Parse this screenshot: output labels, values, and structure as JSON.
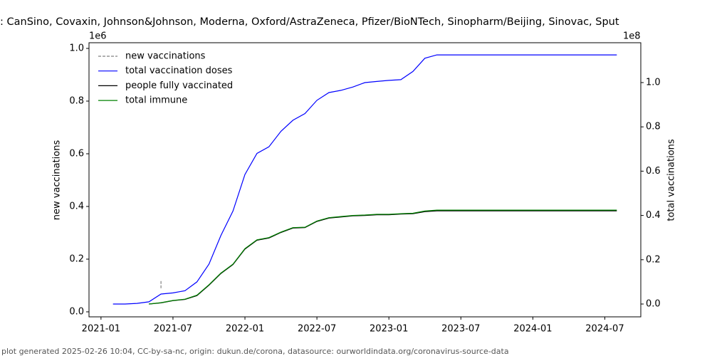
{
  "chart_data": {
    "type": "line",
    "title": ": CanSino, Covaxin, Johnson&Johnson, Moderna, Oxford/AstraZeneca, Pfizer/BioNTech, Sinopharm/Beijing, Sinovac, Sput",
    "y_label": "new vaccinations",
    "y2_label": "total vaccinations",
    "y_offset": "1e6",
    "y2_offset": "1e8",
    "footer": "plot generated 2025-02-26 10:04, CC-by-sa-nc, origin: dukun.de/corona, datasource: ourworldindata.org/coronavirus-source-data",
    "legend": "upper left",
    "x": [
      "2021-02",
      "2021-03",
      "2021-04",
      "2021-05",
      "2021-06",
      "2021-07",
      "2021-08",
      "2021-09",
      "2021-10",
      "2021-11",
      "2021-12",
      "2022-01",
      "2022-02",
      "2022-03",
      "2022-04",
      "2022-05",
      "2022-06",
      "2022-07",
      "2022-08",
      "2022-09",
      "2022-10",
      "2022-11",
      "2022-12",
      "2023-01",
      "2023-02",
      "2023-03",
      "2023-04",
      "2023-05",
      "2023-06",
      "2023-07",
      "2023-08",
      "2023-09",
      "2023-10",
      "2023-11",
      "2023-12",
      "2024-01",
      "2024-02",
      "2024-03",
      "2024-04",
      "2024-05",
      "2024-06",
      "2024-07",
      "2024-08"
    ],
    "xlim": [
      "2020-12",
      "2024-10"
    ],
    "xticks": [
      "2021-01",
      "2021-07",
      "2022-01",
      "2022-07",
      "2023-01",
      "2023-07",
      "2024-01",
      "2024-07"
    ],
    "ylim": [
      -19000,
      1021600
    ],
    "yticks": [
      {
        "value": 0,
        "label": "0.0"
      },
      {
        "value": 200000,
        "label": "0.2"
      },
      {
        "value": 400000,
        "label": "0.4"
      },
      {
        "value": 600000,
        "label": "0.6"
      },
      {
        "value": 800000,
        "label": "0.8"
      },
      {
        "value": 1000000,
        "label": "1.0"
      }
    ],
    "y2lim": [
      -5790000,
      118000000
    ],
    "y2ticks": [
      {
        "value": 0,
        "label": "0.0"
      },
      {
        "value": 20000000,
        "label": "0.2"
      },
      {
        "value": 40000000,
        "label": "0.4"
      },
      {
        "value": 60000000,
        "label": "0.6"
      },
      {
        "value": 80000000,
        "label": "0.8"
      },
      {
        "value": 100000000,
        "label": "1.0"
      }
    ],
    "series": [
      {
        "name": "new vaccinations",
        "color": "#808080",
        "dashed": true,
        "values": [
          null,
          null,
          null,
          null,
          90000,
          null,
          null,
          null,
          null,
          null,
          null,
          null,
          null,
          null,
          null,
          null,
          null,
          null,
          null,
          null,
          null,
          null,
          null,
          null,
          null,
          null,
          null,
          null,
          null,
          null,
          null,
          null,
          null,
          null,
          null,
          null,
          null,
          null,
          null,
          null,
          null,
          null,
          null
        ]
      },
      {
        "name": "total vaccination doses",
        "color": "#0000ff",
        "axis": "y2",
        "values": [
          0,
          0,
          300000,
          1000000,
          4500000,
          5000000,
          6000000,
          10000000,
          18000000,
          31000000,
          42000000,
          58500000,
          68000000,
          71000000,
          78000000,
          83000000,
          86000000,
          92000000,
          95500000,
          96500000,
          98000000,
          100000000,
          100500000,
          101000000,
          101300000,
          105000000,
          111000000,
          112500000,
          112500000,
          112500000,
          112500000,
          112500000,
          112500000,
          112500000,
          112500000,
          112500000,
          112500000,
          112500000,
          112500000,
          112500000,
          112500000,
          112500000,
          112500000
        ]
      },
      {
        "name": "people fully vaccinated",
        "color": "#000000",
        "axis": "y2",
        "values": [
          null,
          null,
          null,
          0,
          500000,
          1500000,
          2100000,
          3800000,
          8500000,
          13800000,
          17800000,
          24800000,
          28800000,
          29800000,
          32300000,
          34300000,
          34500000,
          37300000,
          38800000,
          39300000,
          39800000,
          40000000,
          40300000,
          40300000,
          40600000,
          40800000,
          41700000,
          42100000,
          42100000,
          42100000,
          42100000,
          42100000,
          42100000,
          42100000,
          42100000,
          42100000,
          42100000,
          42100000,
          42100000,
          42100000,
          42100000,
          42100000,
          42100000
        ]
      },
      {
        "name": "total immune",
        "color": "#008000",
        "axis": "y2",
        "values": [
          null,
          null,
          null,
          0,
          600000,
          1600000,
          2200000,
          4000000,
          8700000,
          14000000,
          18000000,
          25000000,
          29000000,
          30000000,
          32500000,
          34500000,
          34700000,
          37500000,
          39000000,
          39500000,
          40000000,
          40200000,
          40500000,
          40500000,
          40800000,
          41000000,
          42000000,
          42400000,
          42400000,
          42400000,
          42400000,
          42400000,
          42400000,
          42400000,
          42400000,
          42400000,
          42400000,
          42400000,
          42400000,
          42400000,
          42400000,
          42400000,
          42400000
        ]
      }
    ]
  }
}
